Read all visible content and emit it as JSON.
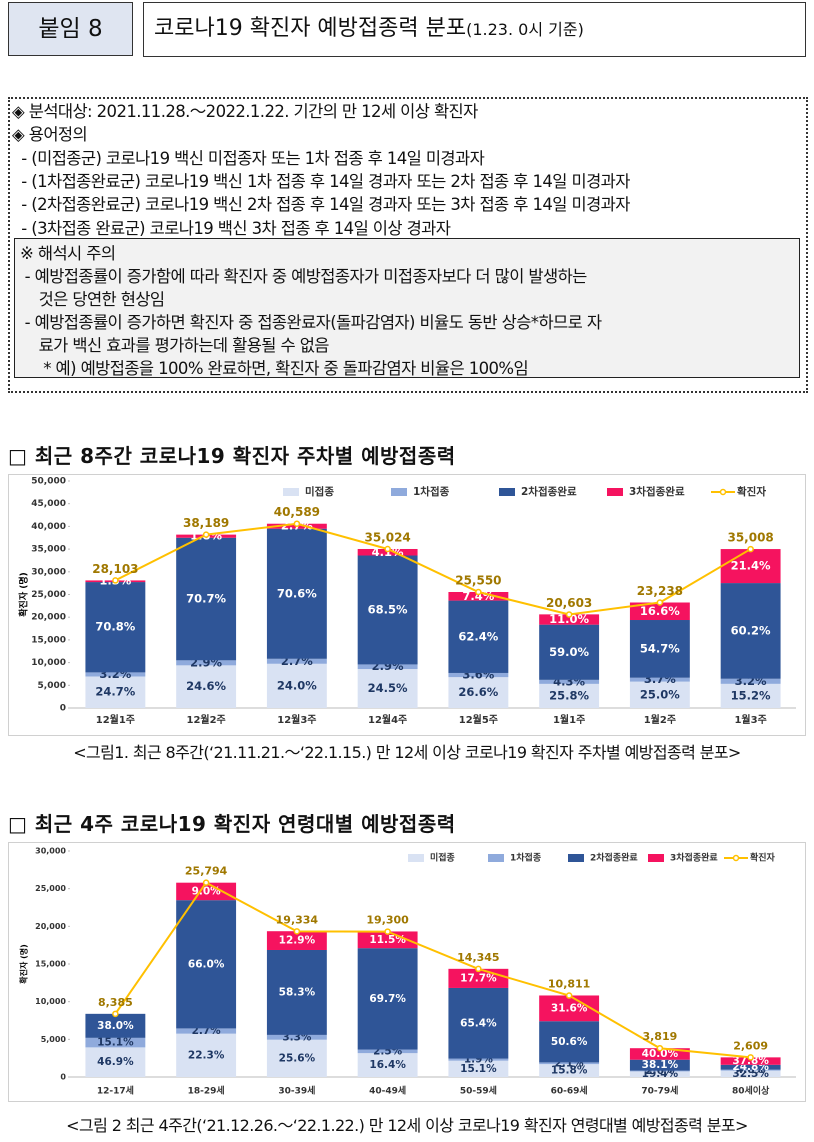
{
  "header": {
    "tag": "붙임 8",
    "title": "코로나19 확진자 예방접종력 분포",
    "title_note": "(1.23. 0시 기준)"
  },
  "summary": {
    "lines": [
      "◈ 분석대상: 2021.11.28.～2022.1.22. 기간의 만 12세 이상 확진자",
      "◈ 용어정의",
      "  - (미접종군) 코로나19 백신 미접종자 또는 1차 접종 후 14일 미경과자",
      "  - (1차접종완료군) 코로나19 백신 1차 접종 후 14일 경과자 또는 2차 접종 후 14일 미경과자",
      "  - (2차접종완료군) 코로나19 백신 2차 접종 후 14일 경과자 또는 3차 접종 후 14일 미경과자",
      "  - (3차접종 완료군) 코로나19 백신 3차 접종 후 14일 이상 경과자"
    ],
    "note": [
      "※ 해석시 주의",
      " - 예방접종률이 증가함에 따라 확진자 중 예방접종자가 미접종자보다 더 많이 발생하는",
      "    것은 당연한 현상임",
      " - 예방접종률이 증가하면 확진자 중 접종완료자(돌파감염자) 비율도 동반 상승*하므로 자",
      "    료가 백신 효과를 평가하는데 활용될 수 없음",
      "     * 예) 예방접종을 100% 완료하면, 확진자 중 돌파감염자 비율은 100%임"
    ]
  },
  "sections": [
    {
      "heading": "□ 최근 8주간 코로나19 확진자 주차별 예방접종력",
      "caption": "<그림1. 최근 8주간(‘21.11.21.～‘22.1.15.) 만 12세 이상 코로나19 확진자 주차별 예방접종력 분포>"
    },
    {
      "heading": "□ 최근 4주 코로나19 확진자 연령대별 예방접종력",
      "caption": "<그림 2 최근 4주간(‘21.12.26.～‘22.1.22.) 만 12세 이상 코로나19 확진자 연령대별 예방접종력 분포>"
    }
  ],
  "chart_data": [
    {
      "type": "bar",
      "stacked": true,
      "ylabel": "확진자 (명)",
      "legend": "top",
      "categories": [
        "12월1주",
        "12월2주",
        "12월3주",
        "12월4주",
        "12월5주",
        "1월1주",
        "1월2주",
        "1월3주"
      ],
      "series": [
        {
          "name": "미접종",
          "color": "#d9e2f3",
          "values": [
            24.7,
            24.6,
            24.0,
            24.5,
            26.6,
            25.8,
            25.0,
            15.2
          ],
          "value_labels": [
            "24.7%",
            "24.6%",
            "24.0%",
            "24.5%",
            "26.6%",
            "25.8%",
            "25.0%",
            "15.2%"
          ]
        },
        {
          "name": "1차접종",
          "color": "#8faadc",
          "values": [
            3.2,
            2.9,
            2.7,
            2.9,
            3.6,
            4.3,
            3.7,
            3.2
          ],
          "value_labels": [
            "3.2%",
            "2.9%",
            "2.7%",
            "2.9%",
            "3.6%",
            "4.3%",
            "3.7%",
            "3.2%"
          ]
        },
        {
          "name": "2차접종완료",
          "color": "#2f5597",
          "values": [
            70.8,
            70.7,
            70.6,
            68.5,
            62.4,
            59.0,
            54.7,
            60.2
          ],
          "value_labels": [
            "70.8%",
            "70.7%",
            "70.6%",
            "68.5%",
            "62.4%",
            "59.0%",
            "54.7%",
            "60.2%"
          ]
        },
        {
          "name": "3차접종완료",
          "color": "#f5135f",
          "values": [
            1.3,
            1.8,
            2.7,
            4.1,
            7.4,
            11.0,
            16.6,
            21.4
          ],
          "value_labels": [
            "1.3%",
            "1.8%",
            "2.7%",
            "4.1%",
            "7.4%",
            "11.0%",
            "16.6%",
            "21.4%"
          ]
        },
        {
          "name": "확진자",
          "type": "line",
          "color": "#ffc000",
          "values": [
            28103,
            38189,
            40589,
            35024,
            25550,
            20603,
            23238,
            35008
          ],
          "value_labels": [
            "28,103",
            "38,189",
            "40,589",
            "35,024",
            "25,550",
            "20,603",
            "23,238",
            "35,008"
          ]
        }
      ],
      "ylim": [
        0,
        50000
      ],
      "yticks": [
        0,
        {
          "value": 5000,
          "label": "5,000"
        },
        {
          "value": 10000,
          "label": "10,000"
        },
        {
          "value": 15000,
          "label": "15,000"
        },
        {
          "value": 20000,
          "label": "20,000"
        },
        {
          "value": 25000,
          "label": "25,000"
        },
        {
          "value": 30000,
          "label": "30,000"
        },
        {
          "value": 35000,
          "label": "35,000"
        },
        {
          "value": 40000,
          "label": "40,000"
        },
        {
          "value": 45000,
          "label": "45,000"
        },
        {
          "value": 50000,
          "label": "50,000"
        }
      ]
    },
    {
      "type": "bar",
      "stacked": true,
      "ylabel": "확진자 (명)",
      "legend": "top",
      "categories": [
        "12-17세",
        "18-29세",
        "30-39세",
        "40-49세",
        "50-59세",
        "60-69세",
        "70-79세",
        "80세이상"
      ],
      "series": [
        {
          "name": "미접종",
          "color": "#d9e2f3",
          "values": [
            46.9,
            22.3,
            25.6,
            16.4,
            15.1,
            15.8,
            19.4,
            32.5
          ],
          "value_labels": [
            "46.9%",
            "22.3%",
            "25.6%",
            "16.4%",
            "15.1%",
            "15.8%",
            "19.4%",
            "32.5%"
          ]
        },
        {
          "name": "1차접종",
          "color": "#8faadc",
          "values": [
            15.1,
            2.7,
            3.3,
            2.5,
            1.9,
            2.1,
            2.6,
            4.8
          ],
          "value_labels": [
            "15.1%",
            "2.7%",
            "3.3%",
            "2.5%",
            "1.9%",
            "2.1%",
            "2.6%",
            "4.8%"
          ]
        },
        {
          "name": "2차접종완료",
          "color": "#2f5597",
          "values": [
            38.0,
            66.0,
            58.3,
            69.7,
            65.4,
            50.6,
            38.1,
            24.8
          ],
          "value_labels": [
            "38.0%",
            "66.0%",
            "58.3%",
            "69.7%",
            "65.4%",
            "50.6%",
            "38.1%",
            "24.8%"
          ]
        },
        {
          "name": "3차접종완료",
          "color": "#f5135f",
          "values": [
            null,
            9.0,
            12.9,
            11.5,
            17.7,
            31.6,
            40.0,
            37.8
          ],
          "value_labels": [
            null,
            "9.0%",
            "12.9%",
            "11.5%",
            "17.7%",
            "31.6%",
            "40.0%",
            "37.8%"
          ]
        },
        {
          "name": "확진자",
          "type": "line",
          "color": "#ffc000",
          "values": [
            8385,
            25794,
            19334,
            19300,
            14345,
            10811,
            3819,
            2609
          ],
          "value_labels": [
            "8,385",
            "25,794",
            "19,334",
            "19,300",
            "14,345",
            "10,811",
            "3,819",
            "2,609"
          ]
        }
      ],
      "ylim": [
        0,
        30000
      ],
      "yticks": [
        0,
        {
          "value": 5000,
          "label": "5,000"
        },
        {
          "value": 10000,
          "label": "10,000"
        },
        {
          "value": 15000,
          "label": "15,000"
        },
        {
          "value": 20000,
          "label": "20,000"
        },
        {
          "value": 25000,
          "label": "25,000"
        },
        {
          "value": 30000,
          "label": "30,000"
        }
      ]
    }
  ]
}
